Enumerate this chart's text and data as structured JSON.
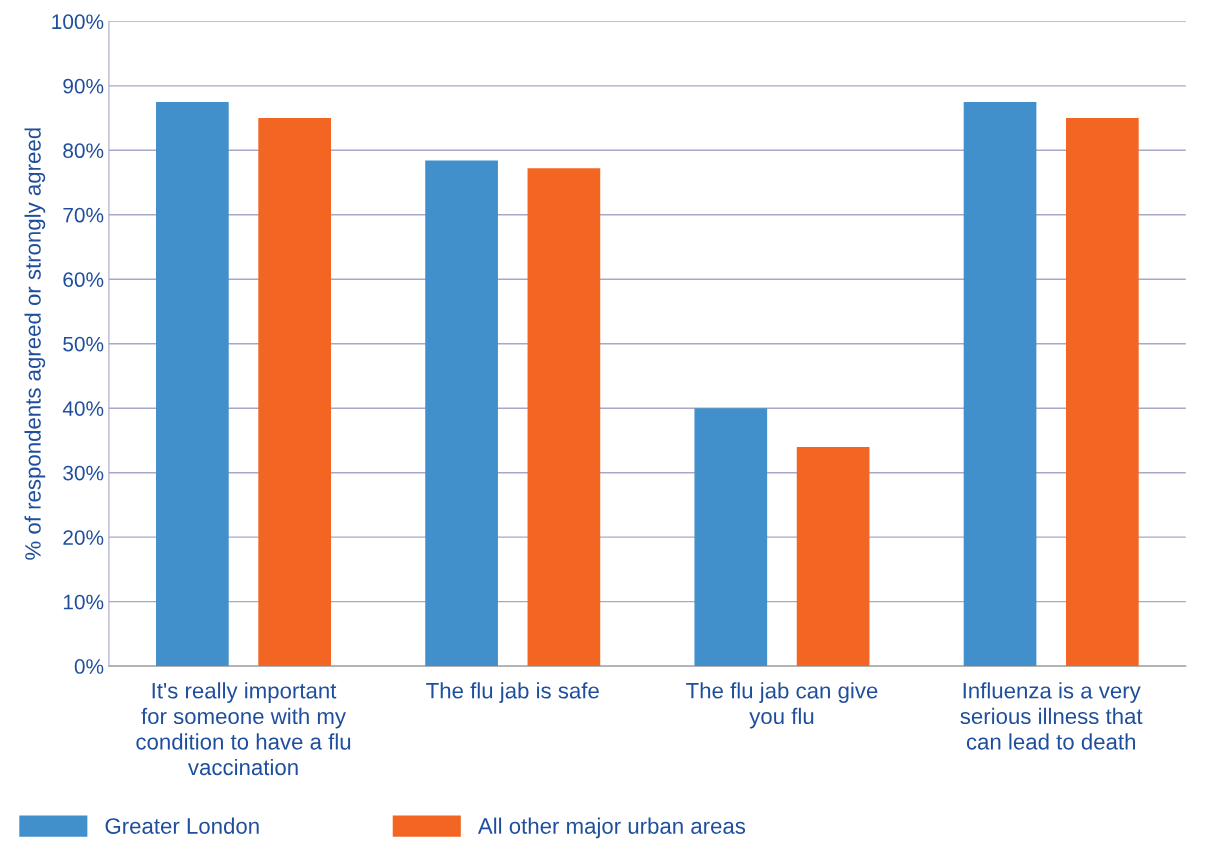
{
  "chart_data": {
    "type": "bar",
    "ylabel": "% of respondents agreed or strongly agreed",
    "categories": [
      "It's really important for someone with my condition to have a flu vaccination",
      "The flu jab is safe",
      "The flu jab can give you flu",
      "Influenza is a very serious illness that can lead to death"
    ],
    "series": [
      {
        "name": "Greater London",
        "color": "#418fcb",
        "values": [
          87.5,
          78.4,
          40,
          87.5
        ]
      },
      {
        "name": "All other major urban areas",
        "color": "#f26522",
        "values": [
          85,
          77.2,
          34,
          85
        ]
      }
    ],
    "ylim": [
      0,
      100
    ],
    "yticks": [
      {
        "value": 0,
        "label": "0%"
      },
      {
        "value": 10,
        "label": "10%"
      },
      {
        "value": 20,
        "label": "20%"
      },
      {
        "value": 30,
        "label": "30%"
      },
      {
        "value": 40,
        "label": "40%"
      },
      {
        "value": 50,
        "label": "50%"
      },
      {
        "value": 60,
        "label": "60%"
      },
      {
        "value": 70,
        "label": "70%"
      },
      {
        "value": 80,
        "label": "80%"
      },
      {
        "value": 90,
        "label": "90%"
      },
      {
        "value": 100,
        "label": "100%"
      }
    ],
    "grid": "y",
    "legend": "bottom left"
  }
}
